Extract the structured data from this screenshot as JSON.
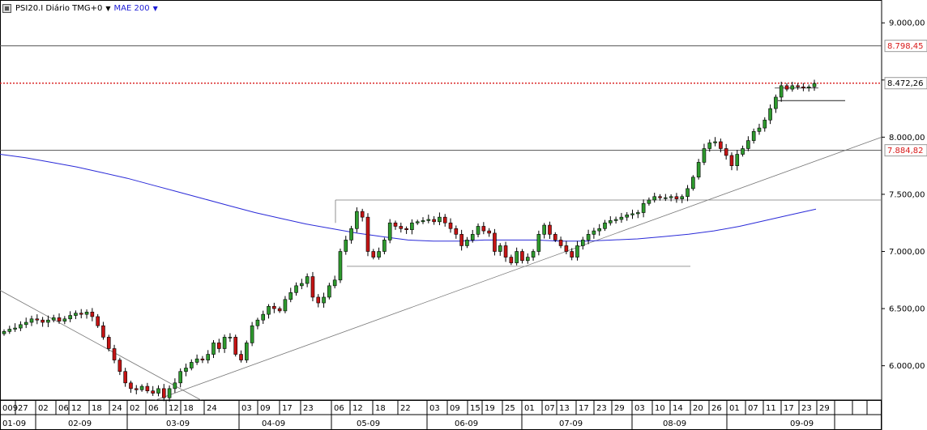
{
  "header": {
    "instrument": "PSI20.I Diário TMG+0",
    "indicator": "MAE 200",
    "indicator_color": "#2a2ad8"
  },
  "price_labels": {
    "resistance": "8.798,45",
    "last": "8.472,26",
    "support": "7.884,82"
  },
  "colors": {
    "up": "#2e9a2e",
    "down": "#c41414",
    "red_dashed": "#d81818",
    "value_box_red": "#d81818"
  },
  "chart_data": {
    "type": "candlestick",
    "title": "PSI20.I Diário TMG+0",
    "ylim": [
      5700,
      9200
    ],
    "ytick_values": [
      6000,
      6500,
      7000,
      7500,
      8000,
      8500,
      9000
    ],
    "ytick_labels": [
      "6.000,00",
      "6.500,00",
      "7.000,00",
      "7.500,00",
      "8.000,00",
      "8.500,00",
      "9.000,00"
    ],
    "date_axis": {
      "days": [
        "009",
        "27",
        "02",
        "06",
        "12",
        "18",
        "24",
        "02",
        "06",
        "12",
        "18",
        "24",
        "03",
        "09",
        "17",
        "23",
        "06",
        "12",
        "18",
        "22",
        "03",
        "09",
        "15",
        "19",
        "25",
        "01",
        "07",
        "13",
        "17",
        "23",
        "29",
        "03",
        "10",
        "14",
        "20",
        "26",
        "01",
        "07",
        "11",
        "17",
        "23",
        "29"
      ],
      "months": [
        "01-09",
        "02-09",
        "03-09",
        "04-09",
        "05-09",
        "06-09",
        "07-09",
        "08-09",
        "09-09"
      ]
    },
    "horizontal_levels": [
      {
        "value": 8798.45,
        "style": "solid"
      },
      {
        "value": 8472.26,
        "style": "dashed-red"
      },
      {
        "value": 7884.82,
        "style": "solid"
      },
      {
        "value": 7450,
        "style": "thin"
      },
      {
        "value": 6870,
        "style": "thin"
      },
      {
        "value": 8430,
        "style": "thin-short"
      },
      {
        "value": 8320,
        "style": "thin-short"
      }
    ],
    "trendlines": [
      {
        "from": [
          "01-09",
          6660
        ],
        "to": [
          "03-09 early",
          5710
        ]
      },
      {
        "from": [
          "03-09 early",
          5710
        ],
        "to": [
          "09-09 end",
          8000
        ]
      }
    ],
    "series": [
      {
        "name": "PSI20.I",
        "close": [
          6300,
          6320,
          6330,
          6360,
          6380,
          6410,
          6400,
          6380,
          6400,
          6420,
          6390,
          6410,
          6440,
          6460,
          6450,
          6470,
          6430,
          6350,
          6250,
          6150,
          6050,
          5950,
          5850,
          5800,
          5790,
          5820,
          5780,
          5760,
          5800,
          5720,
          5800,
          5850,
          5950,
          5980,
          6030,
          6060,
          6050,
          6100,
          6200,
          6150,
          6250,
          6250,
          6100,
          6050,
          6200,
          6350,
          6400,
          6450,
          6520,
          6500,
          6480,
          6580,
          6640,
          6700,
          6720,
          6780,
          6600,
          6550,
          6600,
          6700,
          6750,
          7000,
          7100,
          7200,
          7350,
          7300,
          7000,
          6950,
          7000,
          7100,
          7250,
          7220,
          7200,
          7190,
          7250,
          7260,
          7270,
          7280,
          7260,
          7300,
          7250,
          7200,
          7150,
          7050,
          7100,
          7150,
          7220,
          7180,
          7160,
          7000,
          7050,
          6950,
          6900,
          7000,
          6920,
          6950,
          7000,
          7150,
          7230,
          7150,
          7100,
          7050,
          7000,
          6950,
          7050,
          7100,
          7150,
          7180,
          7200,
          7250,
          7270,
          7280,
          7300,
          7320,
          7330,
          7340,
          7420,
          7450,
          7480,
          7470,
          7470,
          7480,
          7460,
          7480,
          7550,
          7650,
          7780,
          7900,
          7950,
          7960,
          7900,
          7840,
          7750,
          7850,
          7900,
          7970,
          8050,
          8080,
          8150,
          8250,
          8350,
          8450,
          8420,
          8450,
          8440,
          8430,
          8440,
          8470
        ]
      },
      {
        "name": "MAE 200",
        "values": [
          7850,
          7820,
          7780,
          7740,
          7690,
          7640,
          7580,
          7520,
          7460,
          7400,
          7340,
          7290,
          7240,
          7200,
          7160,
          7130,
          7100,
          7090,
          7090,
          7100,
          7100,
          7100,
          7090,
          7090,
          7100,
          7110,
          7130,
          7150,
          7180,
          7220,
          7270,
          7320,
          7370
        ]
      }
    ]
  }
}
